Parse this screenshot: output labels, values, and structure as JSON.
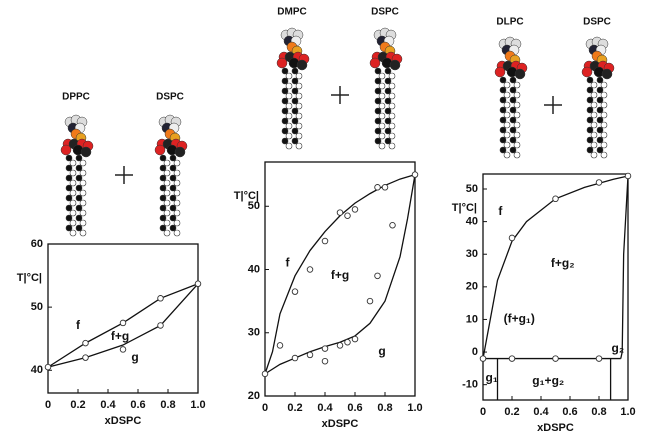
{
  "chart_data": [
    {
      "type": "scatter",
      "molecules": [
        "DPPC",
        "DSPC"
      ],
      "ylabel": "T|°C|",
      "xlabel": "xDSPC",
      "xlim": [
        0,
        1
      ],
      "ylim": [
        36.4,
        60
      ],
      "xticks": [
        0,
        0.2,
        0.4,
        0.6,
        0.8,
        {
          "value": 1,
          "label": "1.0"
        }
      ],
      "yticks": [
        40,
        50,
        60
      ],
      "regions": [
        "f",
        "f+g",
        "g"
      ],
      "points": {
        "x": [
          0,
          0.25,
          0.25,
          0.5,
          0.5,
          0.75,
          0.75,
          1
        ],
        "values": [
          40.5,
          44.3,
          42,
          47.5,
          43.3,
          51.4,
          47.1,
          53.7
        ]
      },
      "curves": [
        {
          "x": [
            0,
            0.25,
            0.5,
            0.75,
            1
          ],
          "values": [
            40.5,
            44.3,
            47.5,
            51.4,
            53.7
          ]
        },
        {
          "x": [
            0,
            0.25,
            0.5,
            0.75,
            1
          ],
          "values": [
            40.5,
            42,
            44,
            47.1,
            53.7
          ]
        }
      ]
    },
    {
      "type": "scatter",
      "molecules": [
        "DMPC",
        "DSPC"
      ],
      "ylabel": "T|°C|",
      "xlabel": "xDSPC",
      "xlim": [
        0,
        1
      ],
      "ylim": [
        20,
        57
      ],
      "xticks": [
        0,
        0.2,
        0.4,
        0.6,
        0.8,
        {
          "value": 1,
          "label": "1.0"
        }
      ],
      "yticks": [
        20,
        30,
        40,
        50
      ],
      "regions": [
        "f",
        "f+g",
        "g"
      ],
      "points": {
        "x": [
          0,
          0.1,
          0.2,
          0.2,
          0.3,
          0.3,
          0.4,
          0.4,
          0.4,
          0.5,
          0.5,
          0.55,
          0.55,
          0.6,
          0.6,
          0.7,
          0.75,
          0.8,
          0.85,
          0.75,
          1
        ],
        "values": [
          23.5,
          28,
          36.5,
          26,
          40,
          26.5,
          44.5,
          27.5,
          25.5,
          49,
          28,
          48.5,
          28.5,
          49.5,
          29,
          35,
          53,
          53,
          47,
          39,
          55
        ]
      },
      "curves": [
        {
          "x": [
            0,
            0.05,
            0.1,
            0.2,
            0.3,
            0.4,
            0.5,
            0.6,
            0.7,
            0.8,
            0.9,
            1
          ],
          "values": [
            23.5,
            27,
            33,
            39,
            43,
            46,
            48.5,
            50.5,
            52,
            53.3,
            54.3,
            55
          ]
        },
        {
          "x": [
            0,
            0.1,
            0.2,
            0.3,
            0.4,
            0.5,
            0.6,
            0.7,
            0.8,
            0.9,
            0.95,
            1
          ],
          "values": [
            23.5,
            25,
            26,
            27,
            27.8,
            28.5,
            29.5,
            31.5,
            35,
            42,
            48,
            55
          ]
        }
      ]
    },
    {
      "type": "scatter",
      "molecules": [
        "DLPC",
        "DSPC"
      ],
      "ylabel": "T|°C|",
      "xlabel": "xDSPC",
      "xlim": [
        0,
        1
      ],
      "ylim": [
        -14.7,
        54.6
      ],
      "xticks": [
        0,
        0.2,
        0.4,
        0.6,
        0.8,
        {
          "value": 1,
          "label": "1.0"
        }
      ],
      "yticks": [
        -10,
        0,
        10,
        20,
        30,
        40,
        50
      ],
      "regions": [
        "f",
        "f+g₂",
        "(f+g₁)",
        "g₁",
        "g₁+g₂",
        "g₂"
      ],
      "points": {
        "x": [
          0,
          0.2,
          0.2,
          0.5,
          0.5,
          0.8,
          0.8,
          1
        ],
        "values": [
          -2,
          35,
          -2,
          47,
          -2,
          52,
          -2,
          54
        ]
      },
      "curves": [
        {
          "x": [
            0,
            0.05,
            0.1,
            0.2,
            0.3,
            0.5,
            0.7,
            0.9,
            1
          ],
          "values": [
            -2,
            10,
            22,
            34,
            40,
            47,
            50.5,
            53,
            54
          ]
        },
        {
          "x": [
            1,
            0.97,
            0.96,
            0.95
          ],
          "values": [
            54,
            30,
            0,
            -2
          ]
        },
        {
          "x": [
            0,
            0.95
          ],
          "values": [
            -2,
            -2
          ]
        },
        {
          "x": [
            0.1,
            0.1
          ],
          "values": [
            -2,
            -14.7
          ]
        },
        {
          "x": [
            0.88,
            0.88
          ],
          "values": [
            -2,
            -14.7
          ]
        }
      ]
    }
  ]
}
